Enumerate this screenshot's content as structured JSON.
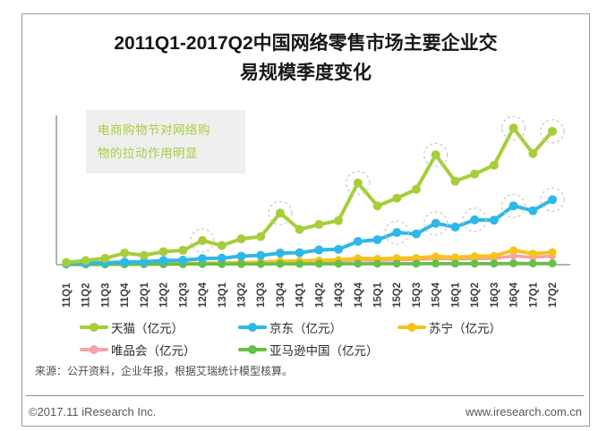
{
  "title": {
    "line1": "2011Q1-2017Q2中国网络零售市场主要企业交",
    "line2": "易规模季度变化"
  },
  "annotation": {
    "lines": [
      "电商购物节对网络购",
      "物的拉动作用明显"
    ],
    "bg": "#efefef",
    "color": "#a9cf3f"
  },
  "source_note": "来源：公开资料，企业年报，根据艾瑞统计模型核算。",
  "footer": {
    "copyright": "©2017.11 iResearch Inc.",
    "website": "www.iresearch.com.cn"
  },
  "chart_data": {
    "type": "line",
    "title": "2011Q1-2017Q2中国网络零售市场主要企业交易规模季度变化",
    "unit": "亿元",
    "categories": [
      "11Q1",
      "11Q2",
      "11Q3",
      "11Q4",
      "12Q1",
      "12Q2",
      "12Q3",
      "12Q4",
      "13Q1",
      "13Q2",
      "13Q3",
      "13Q4",
      "14Q1",
      "14Q2",
      "14Q3",
      "14Q4",
      "15Q1",
      "15Q2",
      "15Q3",
      "15Q4",
      "16Q1",
      "16Q2",
      "16Q3",
      "16Q4",
      "17Q1",
      "17Q2"
    ],
    "ylim": [
      0,
      4200
    ],
    "grid": false,
    "y_axis_labels": false,
    "legend_position": "bottom",
    "axis_color": "#9e9e9e",
    "highlight_circle_color": "#c8c8c8",
    "series": [
      {
        "key": "tmall",
        "label": "天猫（亿元）",
        "color": "#a6ce39",
        "values": [
          65,
          120,
          185,
          340,
          275,
          380,
          420,
          705,
          560,
          755,
          820,
          1510,
          1030,
          1175,
          1290,
          2390,
          1720,
          1945,
          2205,
          3210,
          2440,
          2650,
          2910,
          3995,
          3250,
          3900
        ],
        "highlighted_points": [
          "12Q4",
          "13Q4",
          "14Q4",
          "15Q4",
          "16Q4",
          "17Q2"
        ]
      },
      {
        "key": "jd",
        "label": "京东（亿元）",
        "color": "#2eb8e8",
        "values": [
          30,
          40,
          55,
          75,
          85,
          120,
          130,
          180,
          190,
          250,
          270,
          340,
          350,
          430,
          450,
          680,
          730,
          940,
          900,
          1210,
          1100,
          1310,
          1300,
          1720,
          1580,
          1900
        ],
        "highlighted_points": [
          "15Q2",
          "15Q4",
          "16Q2",
          "16Q4",
          "17Q2"
        ]
      },
      {
        "key": "suning",
        "label": "苏宁（亿元）",
        "color": "#f6c319",
        "values": [
          6,
          8,
          10,
          15,
          20,
          25,
          30,
          45,
          50,
          60,
          70,
          100,
          105,
          125,
          135,
          185,
          170,
          190,
          195,
          240,
          215,
          245,
          255,
          420,
          320,
          365
        ],
        "highlighted_points": []
      },
      {
        "key": "vip",
        "label": "唯品会（亿元）",
        "color": "#f4a3a8",
        "values": [
          2,
          3,
          4,
          6,
          9,
          12,
          15,
          25,
          35,
          45,
          52,
          75,
          85,
          100,
          108,
          140,
          125,
          140,
          148,
          180,
          160,
          172,
          180,
          255,
          215,
          250
        ],
        "highlighted_points": []
      },
      {
        "key": "amazon",
        "label": "亚马逊中国（亿元）",
        "color": "#67bf48",
        "values": [
          8,
          9,
          10,
          12,
          13,
          14,
          15,
          18,
          18,
          19,
          20,
          24,
          24,
          25,
          26,
          30,
          28,
          30,
          30,
          34,
          32,
          33,
          34,
          40,
          36,
          38
        ],
        "highlighted_points": []
      }
    ]
  }
}
